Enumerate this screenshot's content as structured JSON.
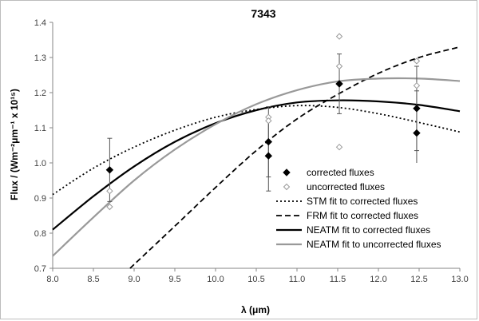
{
  "chart_data": {
    "type": "scatter",
    "title": "7343",
    "xlabel": "λ (μm)",
    "ylabel": "Flux / (Wm⁻²μm⁻¹ x 10¹⁵)",
    "xlim": [
      8.0,
      13.0
    ],
    "ylim": [
      0.7,
      1.4
    ],
    "x_ticks": [
      "8.0",
      "8.5",
      "9.0",
      "9.5",
      "10.0",
      "10.5",
      "11.0",
      "11.5",
      "12.0",
      "12.5",
      "13.0"
    ],
    "y_ticks": [
      "0.7",
      "0.8",
      "0.9",
      "1.0",
      "1.1",
      "1.2",
      "1.3",
      "1.4"
    ],
    "grid": false,
    "legend_position": "right-center",
    "series": [
      {
        "name": "corrected fluxes",
        "kind": "points",
        "marker": "filled-diamond",
        "color": "#000000",
        "points": [
          {
            "x": 8.7,
            "y": 0.98,
            "err": 0.09
          },
          {
            "x": 10.65,
            "y": 1.06,
            "err": 0.1
          },
          {
            "x": 10.65,
            "y": 1.02,
            "err": 0.1
          },
          {
            "x": 11.52,
            "y": 1.225,
            "err": 0.085
          },
          {
            "x": 12.47,
            "y": 1.155,
            "err": 0.12
          },
          {
            "x": 12.47,
            "y": 1.085,
            "err": 0.12
          }
        ]
      },
      {
        "name": "uncorrected fluxes",
        "kind": "points",
        "marker": "open-diamond",
        "color": "#999999",
        "points": [
          {
            "x": 8.7,
            "y": 0.92
          },
          {
            "x": 8.7,
            "y": 0.875
          },
          {
            "x": 10.65,
            "y": 1.13
          },
          {
            "x": 10.65,
            "y": 1.12
          },
          {
            "x": 11.52,
            "y": 1.36
          },
          {
            "x": 11.52,
            "y": 1.275
          },
          {
            "x": 11.52,
            "y": 1.045
          },
          {
            "x": 12.47,
            "y": 1.29
          },
          {
            "x": 12.47,
            "y": 1.22
          }
        ]
      },
      {
        "name": "STM fit to corrected fluxes",
        "kind": "line",
        "style": "dotted",
        "color": "#000000",
        "x": [
          8.0,
          8.5,
          9.0,
          9.5,
          10.0,
          10.5,
          11.0,
          11.5,
          12.0,
          12.5,
          13.0
        ],
        "y": [
          0.91,
          0.985,
          1.045,
          1.093,
          1.13,
          1.152,
          1.163,
          1.158,
          1.14,
          1.115,
          1.088
        ]
      },
      {
        "name": "FRM fit to corrected fluxes",
        "kind": "line",
        "style": "dashed",
        "color": "#000000",
        "x": [
          8.95,
          9.5,
          10.0,
          10.5,
          11.0,
          11.5,
          12.0,
          12.5,
          13.0
        ],
        "y": [
          0.7,
          0.82,
          0.93,
          1.035,
          1.125,
          1.195,
          1.255,
          1.3,
          1.33
        ]
      },
      {
        "name": "NEATM fit to corrected fluxes",
        "kind": "line",
        "style": "solid",
        "color": "#000000",
        "x": [
          8.0,
          8.5,
          9.0,
          9.5,
          10.0,
          10.5,
          11.0,
          11.5,
          12.0,
          12.5,
          13.0
        ],
        "y": [
          0.81,
          0.905,
          0.99,
          1.06,
          1.113,
          1.15,
          1.172,
          1.178,
          1.175,
          1.165,
          1.147
        ]
      },
      {
        "name": "NEATM fit to uncorrected fluxes",
        "kind": "line",
        "style": "solid",
        "color": "#999999",
        "x": [
          8.0,
          8.5,
          9.0,
          9.5,
          10.0,
          10.5,
          11.0,
          11.5,
          12.0,
          12.5,
          13.0
        ],
        "y": [
          0.735,
          0.845,
          0.95,
          1.038,
          1.11,
          1.167,
          1.207,
          1.232,
          1.24,
          1.24,
          1.233
        ]
      }
    ]
  }
}
